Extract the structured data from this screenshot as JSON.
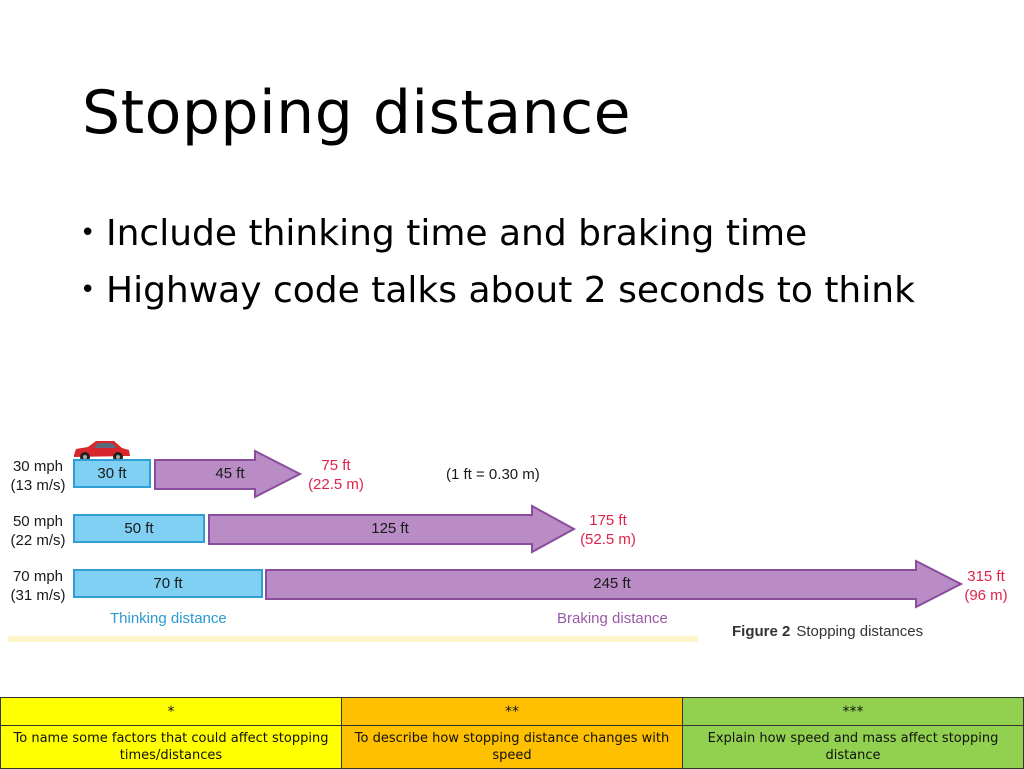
{
  "slide": {
    "title": "Stopping distance",
    "bullets": [
      "Include thinking time and braking time",
      "Highway code talks about 2 seconds to think"
    ]
  },
  "figure": {
    "conversion": "(1 ft = 0.30 m)",
    "rows": [
      {
        "speed_mph": "30 mph",
        "speed_ms": "(13 m/s)",
        "thinking": "30 ft",
        "braking": "45 ft",
        "total_ft": "75 ft",
        "total_m": "(22.5  m)"
      },
      {
        "speed_mph": "50 mph",
        "speed_ms": "(22 m/s)",
        "thinking": "50 ft",
        "braking": "125 ft",
        "total_ft": "175 ft",
        "total_m": "(52.5  m)"
      },
      {
        "speed_mph": "70 mph",
        "speed_ms": "(31 m/s)",
        "thinking": "70 ft",
        "braking": "245 ft",
        "total_ft": "315 ft",
        "total_m": "(96  m)"
      }
    ],
    "legend_thinking": "Thinking distance",
    "legend_braking": "Braking distance",
    "caption_label": "Figure 2",
    "caption_text": "Stopping distances",
    "colors": {
      "thinking_fill": "#7fd0f3",
      "braking_fill": "#b98cc6",
      "total_text": "#e0234b"
    }
  },
  "objectives": {
    "stars": [
      "*",
      "**",
      "***"
    ],
    "descriptions": [
      "To name some factors that could affect stopping times/distances",
      "To describe how stopping distance changes with speed",
      "Explain how speed and mass affect stopping distance"
    ],
    "colors": [
      "#ffff00",
      "#ffc000",
      "#92d050"
    ]
  }
}
